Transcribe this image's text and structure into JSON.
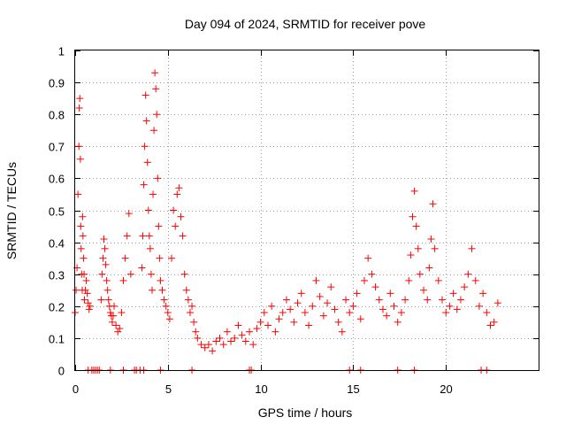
{
  "chart_data": {
    "type": "scatter",
    "title": "Day 094 of 2024, SRMTID for receiver pove",
    "xlabel": "GPS time / hours",
    "ylabel": "SRMTID / TECUs",
    "xlim": [
      0,
      25
    ],
    "ylim": [
      0,
      1
    ],
    "xticks": [
      0,
      5,
      10,
      15,
      20
    ],
    "xtick_labels": [
      "0",
      "5",
      "10",
      "15",
      "20"
    ],
    "yticks": [
      0,
      0.1,
      0.2,
      0.3,
      0.4,
      0.5,
      0.6,
      0.7,
      0.8,
      0.9,
      1
    ],
    "ytick_labels": [
      "0",
      "0.1",
      "0.2",
      "0.3",
      "0.4",
      "0.5",
      "0.6",
      "0.7",
      "0.8",
      "0.9",
      "1"
    ],
    "grid": true,
    "marker": "+",
    "color": "#ff0000",
    "series": [
      {
        "name": "SRMTID",
        "x": [
          0.0,
          0.05,
          0.1,
          0.15,
          0.2,
          0.22,
          0.25,
          0.28,
          0.3,
          0.32,
          0.35,
          0.38,
          0.4,
          0.42,
          0.45,
          0.48,
          0.5,
          0.55,
          0.6,
          0.65,
          0.7,
          0.75,
          0.8,
          1.4,
          1.45,
          1.5,
          1.55,
          1.6,
          1.65,
          1.7,
          1.75,
          1.8,
          1.85,
          1.9,
          1.95,
          2.0,
          2.05,
          2.1,
          2.2,
          2.3,
          2.4,
          2.5,
          2.6,
          2.7,
          2.8,
          2.9,
          3.0,
          3.6,
          3.65,
          3.7,
          3.75,
          3.8,
          3.85,
          3.9,
          3.95,
          4.0,
          4.05,
          4.1,
          4.15,
          4.2,
          4.25,
          4.3,
          4.35,
          4.4,
          4.45,
          4.5,
          4.55,
          4.6,
          4.7,
          4.8,
          4.9,
          5.0,
          5.1,
          5.2,
          5.3,
          5.4,
          5.5,
          5.6,
          5.7,
          5.8,
          5.9,
          6.0,
          6.1,
          6.2,
          6.3,
          6.4,
          6.5,
          6.6,
          6.8,
          7.0,
          7.2,
          7.4,
          7.6,
          7.8,
          8.0,
          8.2,
          8.4,
          8.6,
          8.8,
          9.0,
          9.2,
          9.4,
          9.6,
          9.8,
          10.0,
          10.2,
          10.4,
          10.6,
          10.8,
          11.0,
          11.2,
          11.4,
          11.6,
          11.8,
          12.0,
          12.2,
          12.4,
          12.6,
          12.8,
          13.0,
          13.2,
          13.4,
          13.6,
          13.8,
          14.0,
          14.2,
          14.4,
          14.6,
          14.8,
          15.0,
          15.2,
          15.4,
          15.6,
          15.8,
          16.0,
          16.2,
          16.4,
          16.6,
          16.8,
          17.0,
          17.2,
          17.4,
          17.6,
          17.8,
          18.0,
          18.1,
          18.2,
          18.3,
          18.4,
          18.5,
          18.6,
          18.8,
          19.0,
          19.1,
          19.2,
          19.3,
          19.4,
          19.6,
          19.8,
          20.0,
          20.2,
          20.4,
          20.6,
          20.8,
          21.0,
          21.2,
          21.4,
          21.6,
          21.8,
          22.0,
          22.2,
          22.4,
          22.6,
          22.8,
          0.7,
          0.9,
          1.0,
          1.1,
          1.2,
          1.3,
          1.9,
          2.6,
          3.2,
          3.3,
          3.5,
          3.7,
          4.6,
          6.3,
          9.4,
          9.5,
          14.8,
          15.4,
          17.4,
          18.3,
          21.9,
          22.2
        ],
        "y": [
          0.18,
          0.25,
          0.32,
          0.55,
          0.7,
          0.82,
          0.85,
          0.66,
          0.45,
          0.38,
          0.3,
          0.25,
          0.48,
          0.42,
          0.35,
          0.3,
          0.22,
          0.25,
          0.28,
          0.24,
          0.21,
          0.19,
          0.2,
          0.22,
          0.3,
          0.35,
          0.41,
          0.38,
          0.33,
          0.28,
          0.25,
          0.22,
          0.2,
          0.18,
          0.17,
          0.15,
          0.17,
          0.2,
          0.14,
          0.12,
          0.13,
          0.18,
          0.28,
          0.35,
          0.42,
          0.49,
          0.3,
          0.32,
          0.42,
          0.58,
          0.7,
          0.86,
          0.78,
          0.65,
          0.5,
          0.42,
          0.38,
          0.3,
          0.25,
          0.55,
          0.75,
          0.93,
          0.88,
          0.8,
          0.6,
          0.45,
          0.35,
          0.28,
          0.25,
          0.22,
          0.2,
          0.18,
          0.16,
          0.35,
          0.5,
          0.45,
          0.55,
          0.57,
          0.48,
          0.42,
          0.3,
          0.25,
          0.22,
          0.18,
          0.2,
          0.15,
          0.12,
          0.1,
          0.08,
          0.07,
          0.08,
          0.06,
          0.09,
          0.1,
          0.08,
          0.12,
          0.09,
          0.1,
          0.14,
          0.11,
          0.09,
          0.12,
          0.08,
          0.13,
          0.15,
          0.18,
          0.14,
          0.2,
          0.12,
          0.16,
          0.18,
          0.22,
          0.19,
          0.15,
          0.21,
          0.24,
          0.18,
          0.14,
          0.2,
          0.28,
          0.23,
          0.17,
          0.21,
          0.26,
          0.19,
          0.15,
          0.12,
          0.22,
          0.18,
          0.2,
          0.24,
          0.16,
          0.28,
          0.35,
          0.3,
          0.26,
          0.22,
          0.19,
          0.17,
          0.24,
          0.2,
          0.15,
          0.18,
          0.22,
          0.28,
          0.36,
          0.48,
          0.56,
          0.45,
          0.38,
          0.3,
          0.25,
          0.22,
          0.32,
          0.41,
          0.52,
          0.38,
          0.28,
          0.22,
          0.18,
          0.2,
          0.24,
          0.19,
          0.22,
          0.26,
          0.3,
          0.38,
          0.28,
          0.2,
          0.24,
          0.18,
          0.14,
          0.15,
          0.21,
          0.0,
          0.0,
          0.0,
          0.0,
          0.0,
          0.0,
          0.0,
          0.0,
          0.0,
          0.0,
          0.0,
          0.0,
          0.0,
          0.0,
          0.0,
          0.0,
          0.0,
          0.0,
          0.0,
          0.0,
          0.0,
          0.0
        ]
      }
    ]
  }
}
